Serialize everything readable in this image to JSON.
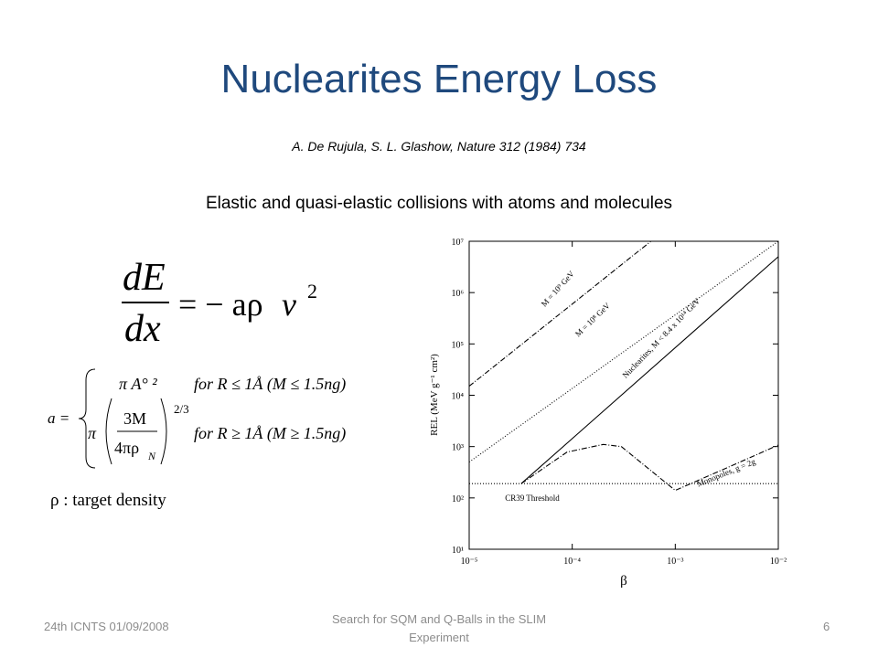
{
  "header": {
    "title": "Nuclearites Energy Loss",
    "citation": "A. De Rujula, S. L. Glashow, Nature 312 (1984) 734",
    "subtitle": "Elastic and quasi-elastic collisions with atoms and molecules"
  },
  "formula": {
    "numerator": "dE",
    "denominator": "dx",
    "rhs": "= − aρ",
    "velocity": "v",
    "exponent": "2",
    "a_label": "a =",
    "case1_expr": "π A° ²",
    "case1_cond": "for R ≤ 1Å (M ≤ 1.5ng)",
    "case2_pi": "π",
    "case2_num": "3M",
    "case2_den": "4πρ",
    "case2_sub": "N",
    "case2_exp": "2/3",
    "case2_cond": "for R ≥ 1Å (M ≥ 1.5ng)",
    "density": "ρ : target density"
  },
  "chart": {
    "type": "line",
    "xlabel": "β",
    "ylabel": "REL (MeV g⁻¹ cm²)",
    "log_x": true,
    "log_y": true,
    "xlim": [
      1e-05,
      0.01
    ],
    "ylim": [
      10,
      10000000
    ],
    "xticks": [
      {
        "value": 1e-05,
        "label": "10⁻⁵"
      },
      {
        "value": 0.0001,
        "label": "10⁻⁴"
      },
      {
        "value": 0.001,
        "label": "10⁻³"
      },
      {
        "value": 0.01,
        "label": "10⁻²"
      }
    ],
    "yticks": [
      {
        "value": 10,
        "label": "10¹"
      },
      {
        "value": 100,
        "label": "10²"
      },
      {
        "value": 1000,
        "label": "10³"
      },
      {
        "value": 10000,
        "label": "10⁴"
      },
      {
        "value": 100000,
        "label": "10⁵"
      },
      {
        "value": 1000000,
        "label": "10⁶"
      },
      {
        "value": 10000000,
        "label": "10⁷"
      }
    ],
    "series": [
      {
        "name": "M = 10⁹ GeV",
        "dash": "dashdot",
        "color": "#000000",
        "x": [
          1e-05,
          0.00058
        ],
        "y": [
          15000,
          10000000
        ]
      },
      {
        "name": "M = 10⁸ GeV",
        "dash": "dotted",
        "color": "#000000",
        "x": [
          1e-05,
          0.01
        ],
        "y": [
          500,
          10000000
        ]
      },
      {
        "name": "Nuclearites, M < 8.4 x 10¹⁴ GeV",
        "dash": "solid",
        "color": "#000000",
        "x": [
          3.2e-05,
          0.01
        ],
        "y": [
          190,
          5000000
        ]
      },
      {
        "name": "Monopoles, g = 2g",
        "dash": "dashdot",
        "color": "#000000",
        "x": [
          3.2e-05,
          8.9e-05,
          0.0002,
          0.0003,
          0.001,
          0.0035,
          0.01
        ],
        "y": [
          190,
          780,
          1100,
          1000,
          140,
          420,
          1070
        ]
      },
      {
        "name": "CR39 Threshold",
        "dash": "dotted",
        "color": "#000000",
        "x": [
          1e-05,
          0.01
        ],
        "y": [
          190,
          190
        ]
      }
    ]
  },
  "footer": {
    "left": "24th ICNTS 01/09/2008",
    "center": "Search for SQM and Q-Balls in the SLIM Experiment",
    "right": "6"
  }
}
